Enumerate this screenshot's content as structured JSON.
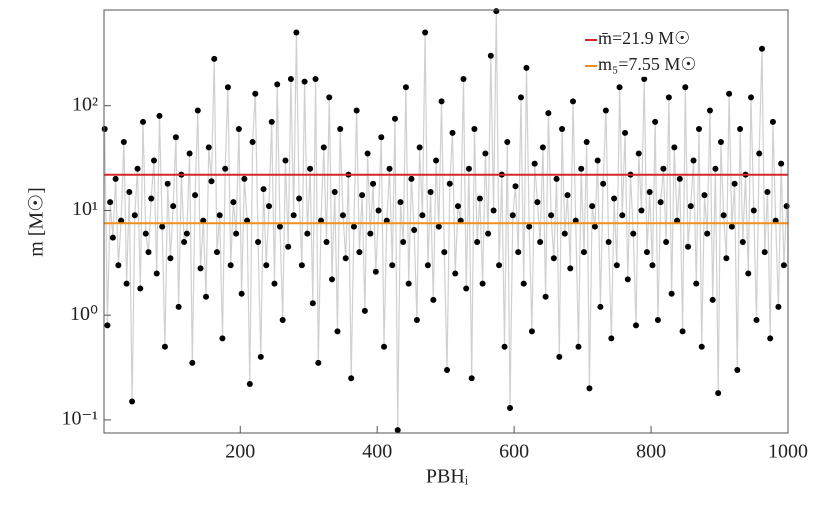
{
  "chart_data": {
    "type": "scatter",
    "xlabel": "PBHᵢ",
    "ylabel": "m [M☉]",
    "xlim": [
      1,
      1000
    ],
    "xticks": [
      200,
      400,
      600,
      800,
      1000
    ],
    "ylim": [
      0.075,
      820
    ],
    "log_y": true,
    "yticks": [
      {
        "value": 0.1,
        "label": "10⁻¹"
      },
      {
        "value": 1,
        "label": "10⁰"
      },
      {
        "value": 10,
        "label": "10¹"
      },
      {
        "value": 100,
        "label": "10²"
      }
    ],
    "point_color": "#000000",
    "line_color": "#d0d0d0",
    "hlines": [
      {
        "name": "m̄=21.9 M☉",
        "value": 21.9,
        "color": "#d62728"
      },
      {
        "name": "m₅=7.55 M☉",
        "value": 7.55,
        "color": "#f28e1c"
      }
    ],
    "x": [
      2,
      6,
      10,
      14,
      18,
      22,
      26,
      30,
      34,
      38,
      42,
      46,
      50,
      54,
      58,
      62,
      66,
      70,
      74,
      78,
      82,
      86,
      90,
      94,
      98,
      102,
      106,
      110,
      114,
      118,
      122,
      126,
      130,
      134,
      138,
      142,
      146,
      150,
      154,
      158,
      162,
      166,
      170,
      174,
      178,
      182,
      186,
      190,
      194,
      198,
      202,
      206,
      210,
      214,
      218,
      222,
      226,
      230,
      234,
      238,
      242,
      246,
      250,
      254,
      258,
      262,
      266,
      270,
      274,
      278,
      282,
      286,
      290,
      294,
      298,
      302,
      306,
      310,
      314,
      318,
      322,
      326,
      330,
      334,
      338,
      342,
      346,
      350,
      354,
      358,
      362,
      366,
      370,
      374,
      378,
      382,
      386,
      390,
      394,
      398,
      402,
      406,
      410,
      414,
      418,
      422,
      426,
      430,
      434,
      438,
      442,
      446,
      450,
      454,
      458,
      462,
      466,
      470,
      474,
      478,
      482,
      486,
      490,
      494,
      498,
      502,
      506,
      510,
      514,
      518,
      522,
      526,
      530,
      534,
      538,
      542,
      546,
      550,
      554,
      558,
      562,
      566,
      570,
      574,
      578,
      582,
      586,
      590,
      594,
      598,
      602,
      606,
      610,
      614,
      618,
      622,
      626,
      630,
      634,
      638,
      642,
      646,
      650,
      654,
      658,
      662,
      666,
      670,
      674,
      678,
      682,
      686,
      690,
      694,
      698,
      702,
      706,
      710,
      714,
      718,
      722,
      726,
      730,
      734,
      738,
      742,
      746,
      750,
      754,
      758,
      762,
      766,
      770,
      774,
      778,
      782,
      786,
      790,
      794,
      798,
      802,
      806,
      810,
      814,
      818,
      822,
      826,
      830,
      834,
      838,
      842,
      846,
      850,
      854,
      858,
      862,
      866,
      870,
      874,
      878,
      882,
      886,
      890,
      894,
      898,
      902,
      906,
      910,
      914,
      918,
      922,
      926,
      930,
      934,
      938,
      942,
      946,
      950,
      954,
      958,
      962,
      966,
      970,
      974,
      978,
      982,
      986,
      990,
      994,
      998
    ],
    "values": [
      60,
      0.8,
      12,
      5.5,
      20,
      3,
      8,
      45,
      2,
      15,
      0.15,
      9,
      25,
      1.8,
      70,
      6,
      4,
      13,
      30,
      2.5,
      80,
      7,
      0.5,
      18,
      3.5,
      11,
      50,
      1.2,
      22,
      5,
      6,
      35,
      0.35,
      14,
      90,
      2.8,
      8,
      1.5,
      40,
      19,
      280,
      4,
      9,
      0.6,
      25,
      150,
      3,
      12,
      6,
      60,
      1.6,
      20,
      8,
      0.22,
      45,
      130,
      5,
      0.4,
      16,
      3,
      11,
      70,
      2,
      160,
      7,
      0.9,
      30,
      4.5,
      180,
      9,
      500,
      13,
      3,
      170,
      6,
      25,
      1.3,
      180,
      0.35,
      8,
      40,
      5,
      120,
      2.2,
      15,
      0.7,
      60,
      9,
      3.5,
      22,
      0.25,
      7,
      90,
      4,
      14,
      1.1,
      35,
      6,
      18,
      2.6,
      10,
      50,
      0.5,
      8,
      25,
      3,
      75,
      0.08,
      12,
      5,
      150,
      2,
      20,
      6.5,
      0.9,
      40,
      9,
      500,
      3,
      15,
      1.4,
      30,
      7,
      110,
      4,
      0.3,
      18,
      55,
      2.5,
      11,
      8,
      180,
      1.8,
      25,
      0.25,
      60,
      5,
      13,
      2,
      35,
      6,
      300,
      10,
      800,
      3,
      22,
      0.5,
      45,
      0.13,
      9,
      17,
      4,
      120,
      2,
      230,
      7,
      0.7,
      28,
      12,
      5,
      40,
      1.5,
      85,
      9,
      3.5,
      20,
      0.4,
      60,
      6,
      14,
      2.8,
      110,
      8,
      0.5,
      25,
      4,
      45,
      0.2,
      11,
      7,
      30,
      1.2,
      18,
      90,
      5,
      0.6,
      13,
      3,
      150,
      9,
      55,
      2.2,
      22,
      6,
      0.8,
      35,
      10,
      180,
      4,
      15,
      3,
      70,
      0.9,
      12,
      25,
      5,
      120,
      1.6,
      40,
      8,
      20,
      0.7,
      150,
      4.5,
      11,
      30,
      2,
      60,
      0.5,
      14,
      6,
      90,
      1.4,
      25,
      0.18,
      45,
      9,
      3.5,
      130,
      7,
      18,
      0.3,
      60,
      5,
      22,
      2.5,
      120,
      10,
      0.9,
      35,
      350,
      4,
      15,
      0.6,
      70,
      8,
      1.2,
      28,
      3,
      11
    ]
  }
}
